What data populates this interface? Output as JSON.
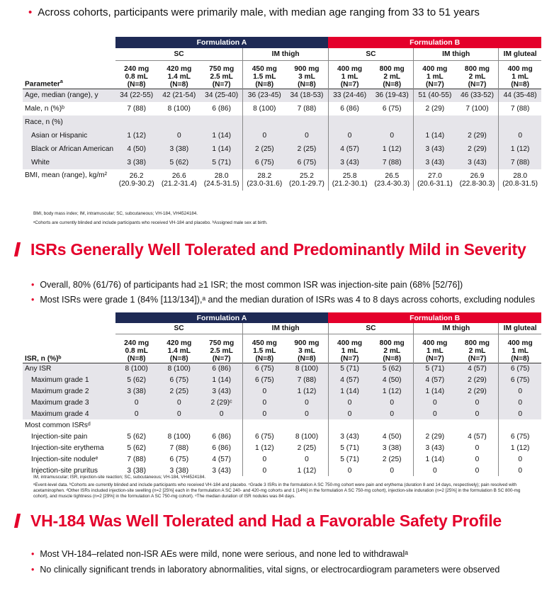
{
  "accent_color": "#e4002b",
  "navy_color": "#1e2a55",
  "top_bullet": "Across cohorts, participants were primarily male, with median age ranging from 33 to 51 years",
  "table1": {
    "formA": "Formulation A",
    "formB": "Formulation B",
    "subs": [
      "SC",
      "IM thigh",
      "SC",
      "IM thigh",
      "IM gluteal"
    ],
    "param_label": "Parameter",
    "param_sup": "a",
    "doses": [
      [
        "240 mg",
        "0.8 mL",
        "(N=8)"
      ],
      [
        "420 mg",
        "1.4 mL",
        "(N=8)"
      ],
      [
        "750 mg",
        "2.5 mL",
        "(N=7)"
      ],
      [
        "450 mg",
        "1.5 mL",
        "(N=8)"
      ],
      [
        "900 mg",
        "3 mL",
        "(N=8)"
      ],
      [
        "400 mg",
        "1 mL",
        "(N=7)"
      ],
      [
        "800 mg",
        "2 mL",
        "(N=8)"
      ],
      [
        "400 mg",
        "1 mL",
        "(N=7)"
      ],
      [
        "800 mg",
        "2 mL",
        "(N=7)"
      ],
      [
        "400 mg",
        "1 mL",
        "(N=8)"
      ]
    ],
    "rows": [
      {
        "label": "Age, median (range), y",
        "vals": [
          "34 (22-55)",
          "42 (21-54)",
          "34 (25-40)",
          "36 (23-45)",
          "34 (18-53)",
          "33 (24-46)",
          "36 (19-43)",
          "51 (40-55)",
          "46 (33-52)",
          "44 (35-48)"
        ]
      },
      {
        "label": "Male, n (%)ᵇ",
        "vals": [
          "7 (88)",
          "8 (100)",
          "6 (86)",
          "8 (100)",
          "7 (88)",
          "6 (86)",
          "6 (75)",
          "2 (29)",
          "7 (100)",
          "7 (88)"
        ]
      },
      {
        "label": "Race, n (%)",
        "vals": [
          "",
          "",
          "",
          "",
          "",
          "",
          "",
          "",
          "",
          ""
        ]
      },
      {
        "label": "Asian or Hispanic",
        "vals": [
          "1 (12)",
          "0",
          "1 (14)",
          "0",
          "0",
          "0",
          "0",
          "1 (14)",
          "2 (29)",
          "0"
        ]
      },
      {
        "label": "Black or African American",
        "vals": [
          "4 (50)",
          "3 (38)",
          "1 (14)",
          "2 (25)",
          "2 (25)",
          "4 (57)",
          "1 (12)",
          "3 (43)",
          "2 (29)",
          "1 (12)"
        ]
      },
      {
        "label": "White",
        "vals": [
          "3 (38)",
          "5 (62)",
          "5 (71)",
          "6 (75)",
          "6 (75)",
          "3 (43)",
          "7 (88)",
          "3 (43)",
          "3 (43)",
          "7 (88)"
        ]
      }
    ],
    "bmi_label": "BMI, mean (range), kg/m²",
    "bmi": [
      [
        "26.2",
        "(20.9-30.2)"
      ],
      [
        "26.6",
        "(21.2-31.4)"
      ],
      [
        "28.0",
        "(24.5-31.5)"
      ],
      [
        "28.2",
        "(23.0-31.6)"
      ],
      [
        "25.2",
        "(20.1-29.7)"
      ],
      [
        "25.8",
        "(21.2-30.1)"
      ],
      [
        "26.5",
        "(23.4-30.3)"
      ],
      [
        "27.0",
        "(20.6-31.1)"
      ],
      [
        "26.9",
        "(22.8-30.3)"
      ],
      [
        "28.0",
        "(20.8-31.5)"
      ]
    ],
    "foot1": "BMI, body mass index; IM, intramuscular; SC, subcutaneous; VH-184, VH4524184.",
    "foot2": "ᵃCohorts are currently blinded and include participants who received VH-184 and placebo. ᵇAssigned male sex at birth."
  },
  "heading1": "ISRs Generally Well Tolerated and Predominantly Mild in Severity",
  "bullets2": [
    "Overall, 80% (61/76) of participants had ≥1 ISR; the most common ISR was injection-site pain (68% [52/76])",
    "Most ISRs were grade 1 (84% [113/134]),ᵃ and the median duration of ISRs was 4 to 8 days across cohorts, excluding nodules"
  ],
  "table2": {
    "formA": "Formulation A",
    "formB": "Formulation B",
    "subs": [
      "SC",
      "IM thigh",
      "SC",
      "IM thigh",
      "IM gluteal"
    ],
    "isr_label": "ISR, n (%)ᵇ",
    "doses": [
      [
        "240 mg",
        "0.8 mL",
        "(N=8)"
      ],
      [
        "420 mg",
        "1.4 mL",
        "(N=8)"
      ],
      [
        "750 mg",
        "2.5 mL",
        "(N=7)"
      ],
      [
        "450 mg",
        "1.5 mL",
        "(N=8)"
      ],
      [
        "900 mg",
        "3 mL",
        "(N=8)"
      ],
      [
        "400 mg",
        "1 mL",
        "(N=7)"
      ],
      [
        "800 mg",
        "2 mL",
        "(N=8)"
      ],
      [
        "400 mg",
        "1 mL",
        "(N=7)"
      ],
      [
        "800 mg",
        "2 mL",
        "(N=7)"
      ],
      [
        "400 mg",
        "1 mL",
        "(N=8)"
      ]
    ],
    "rows": [
      {
        "label": "Any ISR",
        "ind": false,
        "vals": [
          "8 (100)",
          "8 (100)",
          "6 (86)",
          "6 (75)",
          "8 (100)",
          "5 (71)",
          "5 (62)",
          "5 (71)",
          "4 (57)",
          "6 (75)"
        ]
      },
      {
        "label": "Maximum grade 1",
        "ind": true,
        "vals": [
          "5 (62)",
          "6 (75)",
          "1 (14)",
          "6 (75)",
          "7 (88)",
          "4 (57)",
          "4 (50)",
          "4 (57)",
          "2 (29)",
          "6 (75)"
        ]
      },
      {
        "label": "Maximum grade 2",
        "ind": true,
        "vals": [
          "3 (38)",
          "2 (25)",
          "3 (43)",
          "0",
          "1 (12)",
          "1 (14)",
          "1 (12)",
          "1 (14)",
          "2 (29)",
          "0"
        ]
      },
      {
        "label": "Maximum grade 3",
        "ind": true,
        "vals": [
          "0",
          "0",
          "2 (29)ᶜ",
          "0",
          "0",
          "0",
          "0",
          "0",
          "0",
          "0"
        ]
      },
      {
        "label": "Maximum grade 4",
        "ind": true,
        "vals": [
          "0",
          "0",
          "0",
          "0",
          "0",
          "0",
          "0",
          "0",
          "0",
          "0"
        ]
      },
      {
        "label": "Most common ISRsᵈ",
        "ind": false,
        "vals": [
          "",
          "",
          "",
          "",
          "",
          "",
          "",
          "",
          "",
          ""
        ]
      },
      {
        "label": "Injection-site pain",
        "ind": true,
        "vals": [
          "5 (62)",
          "8 (100)",
          "6 (86)",
          "6 (75)",
          "8 (100)",
          "3 (43)",
          "4 (50)",
          "2 (29)",
          "4 (57)",
          "6 (75)"
        ]
      },
      {
        "label": "Injection-site erythema",
        "ind": true,
        "vals": [
          "5 (62)",
          "7 (88)",
          "6 (86)",
          "1 (12)",
          "2 (25)",
          "5 (71)",
          "3 (38)",
          "3 (43)",
          "0",
          "1 (12)"
        ]
      },
      {
        "label": "Injection-site noduleᵉ",
        "ind": true,
        "vals": [
          "7 (88)",
          "6 (75)",
          "4 (57)",
          "0",
          "0",
          "5 (71)",
          "2 (25)",
          "1 (14)",
          "0",
          "0"
        ]
      },
      {
        "label": "Injection-site pruritus",
        "ind": true,
        "vals": [
          "3 (38)",
          "3 (38)",
          "3 (43)",
          "0",
          "1 (12)",
          "0",
          "0",
          "0",
          "0",
          "0"
        ]
      }
    ],
    "foot1": "IM, intramuscular; ISR, injection-site reaction; SC, subcutaneous; VH-184, VH4524184.",
    "foot2": "ᵃEvent-level data. ᵇCohorts are currently blinded and include participants who received VH-184 and placebo. ᶜGrade 3 ISRs in the formulation A SC 750-mg cohort were pain and erythema (duration 8 and 14 days, respectively); pain resolved with acetaminophen. ᵈOther ISRs included injection-site swelling (n=2 [25%] each in the formulation A SC 240- and 420-mg cohorts and 1 [14%] in the formulation A SC 750-mg cohort), injection-site induration (n=2 [25%] in the formulation B SC 800-mg cohort), and muscle tightness (n=2 [29%] in the formulation A SC 750-mg cohort). ᵉThe median duration of ISR nodules was 84 days."
  },
  "heading2": "VH-184 Was Well Tolerated and Had a Favorable Safety Profile",
  "bullets3": [
    "Most VH-184–related non-ISR AEs were mild, none were serious, and none led to withdrawalᵃ",
    "No clinically significant trends in laboratory abnormalities, vital signs, or electrocardiogram parameters were observed"
  ]
}
